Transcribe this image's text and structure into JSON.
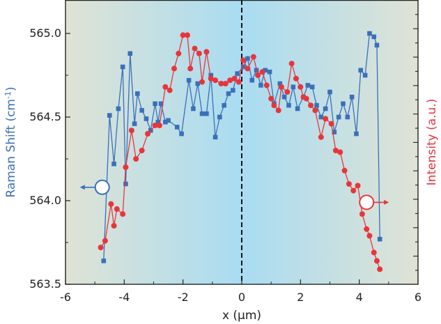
{
  "colors": {
    "bg_edge": "#dfe3d5",
    "bg_center": "#a9dcf2",
    "left_series": "#3a6fba",
    "right_series": "#e8353b",
    "axis": "#222222",
    "center_line": "#111111"
  },
  "chart_data": {
    "type": "line",
    "xlabel": "x (μm)",
    "ylabel_left_main": "Raman Shift (cm",
    "ylabel_left_sup": "-1",
    "ylabel_left_close": ")",
    "ylabel_right": "Intensity (a.u.)",
    "xlim": [
      -6,
      6
    ],
    "ylim_left": [
      563.5,
      565.2
    ],
    "x_ticks": [
      -6,
      -4,
      -2,
      0,
      2,
      4,
      6
    ],
    "x_tick_labels": [
      "-6",
      "-4",
      "-2",
      "0",
      "2",
      "4",
      "6"
    ],
    "y_ticks_left": [
      563.5,
      564.0,
      564.5,
      565.0
    ],
    "y_tick_labels_left": [
      "563.5",
      "564.0",
      "564.5",
      "565.0"
    ],
    "right_axis_ticks_labeled": false,
    "center_line_x": 0,
    "series": [
      {
        "axis": "left",
        "marker": "square",
        "x": [
          -4.7,
          -4.5,
          -4.35,
          -4.2,
          -4.05,
          -3.95,
          -3.8,
          -3.65,
          -3.55,
          -3.4,
          -3.25,
          -3.1,
          -2.95,
          -2.85,
          -2.75,
          -2.6,
          -2.5,
          -2.2,
          -2.05,
          -1.8,
          -1.65,
          -1.5,
          -1.35,
          -1.2,
          -1.05,
          -0.9,
          -0.75,
          -0.6,
          -0.45,
          -0.3,
          -0.15,
          0.05,
          0.2,
          0.35,
          0.5,
          0.65,
          0.8,
          0.95,
          1.1,
          1.3,
          1.45,
          1.6,
          1.75,
          1.9,
          2.1,
          2.25,
          2.4,
          2.55,
          2.7,
          2.85,
          3.0,
          3.15,
          3.3,
          3.45,
          3.6,
          3.75,
          3.9,
          4.05,
          4.2,
          4.35,
          4.5,
          4.6,
          4.7
        ],
        "y": [
          563.64,
          564.51,
          564.22,
          564.55,
          564.8,
          564.1,
          564.88,
          564.46,
          564.64,
          564.54,
          564.49,
          564.42,
          564.58,
          564.47,
          564.58,
          564.47,
          564.48,
          564.44,
          564.4,
          564.72,
          564.55,
          564.7,
          564.52,
          564.52,
          564.75,
          564.38,
          564.5,
          564.57,
          564.64,
          564.66,
          564.76,
          564.8,
          564.85,
          564.72,
          564.78,
          564.69,
          564.78,
          564.77,
          564.58,
          564.7,
          564.62,
          564.57,
          564.68,
          564.55,
          564.62,
          564.69,
          564.68,
          564.57,
          564.5,
          564.55,
          564.65,
          564.41,
          564.5,
          564.58,
          564.5,
          564.62,
          564.4,
          564.78,
          564.75,
          565.0,
          564.98,
          564.93,
          563.77
        ]
      },
      {
        "axis": "right",
        "marker": "circle",
        "x": [
          -4.8,
          -4.65,
          -4.45,
          -4.35,
          -4.25,
          -4.05,
          -3.95,
          -3.75,
          -3.6,
          -3.4,
          -3.2,
          -2.95,
          -2.8,
          -2.6,
          -2.45,
          -2.3,
          -2.15,
          -2.0,
          -1.85,
          -1.75,
          -1.6,
          -1.45,
          -1.35,
          -1.2,
          -1.05,
          -0.9,
          -0.7,
          -0.55,
          -0.4,
          -0.25,
          -0.1,
          0.05,
          0.2,
          0.4,
          0.55,
          0.7,
          0.85,
          1.0,
          1.1,
          1.25,
          1.35,
          1.55,
          1.7,
          1.85,
          2.0,
          2.1,
          2.2,
          2.35,
          2.5,
          2.7,
          2.85,
          3.05,
          3.2,
          3.35,
          3.5,
          3.65,
          3.8,
          3.95,
          4.1,
          4.25,
          4.35,
          4.5,
          4.6,
          4.7
        ],
        "y": [
          563.72,
          563.76,
          563.98,
          563.85,
          563.95,
          563.92,
          564.2,
          564.42,
          564.25,
          564.3,
          564.4,
          564.45,
          564.45,
          564.68,
          564.66,
          564.79,
          564.88,
          564.99,
          564.99,
          564.79,
          564.91,
          564.88,
          564.71,
          564.89,
          564.73,
          564.72,
          564.7,
          564.7,
          564.72,
          564.73,
          564.71,
          564.84,
          564.79,
          564.86,
          564.75,
          564.77,
          564.69,
          564.61,
          564.57,
          564.54,
          564.68,
          564.65,
          564.82,
          564.73,
          564.68,
          564.62,
          564.61,
          564.57,
          564.54,
          564.38,
          564.49,
          564.46,
          564.3,
          564.29,
          564.18,
          564.1,
          564.06,
          564.09,
          563.92,
          563.83,
          563.79,
          563.69,
          563.64,
          563.59
        ]
      }
    ],
    "annotations": [
      {
        "shape": "open-circle",
        "series_axis": "left",
        "x": -4.75,
        "y_left": 564.08,
        "arrow": "left"
      },
      {
        "shape": "open-circle",
        "series_axis": "right",
        "x": 4.25,
        "y_left": 563.99,
        "arrow": "right"
      }
    ]
  }
}
